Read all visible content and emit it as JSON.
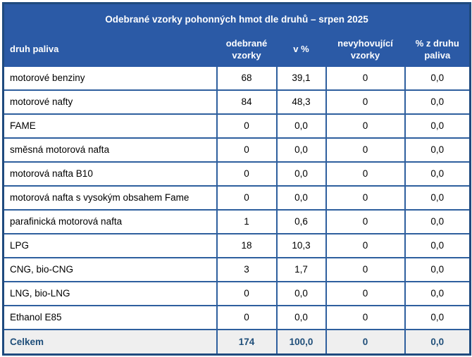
{
  "table": {
    "title": "Odebrané vzorky pohonných hmot dle druhů – srpen 2025",
    "columns": [
      "druh paliva",
      "odebrané vzorky",
      "v %",
      "nevyhovující vzorky",
      "% z druhu paliva"
    ],
    "rows": [
      [
        "motorové benziny",
        "68",
        "39,1",
        "0",
        "0,0"
      ],
      [
        "motorové nafty",
        "84",
        "48,3",
        "0",
        "0,0"
      ],
      [
        "FAME",
        "0",
        "0,0",
        "0",
        "0,0"
      ],
      [
        "směsná motorová nafta",
        "0",
        "0,0",
        "0",
        "0,0"
      ],
      [
        "motorová nafta B10",
        "0",
        "0,0",
        "0",
        "0,0"
      ],
      [
        "motorová nafta s vysokým obsahem Fame",
        "0",
        "0,0",
        "0",
        "0,0"
      ],
      [
        "parafinická motorová nafta",
        "1",
        "0,6",
        "0",
        "0,0"
      ],
      [
        "LPG",
        "18",
        "10,3",
        "0",
        "0,0"
      ],
      [
        "CNG, bio-CNG",
        "3",
        "1,7",
        "0",
        "0,0"
      ],
      [
        "LNG, bio-LNG",
        "0",
        "0,0",
        "0",
        "0,0"
      ],
      [
        "Ethanol E85",
        "0",
        "0,0",
        "0",
        "0,0"
      ]
    ],
    "total_row": [
      "Celkem",
      "174",
      "100,0",
      "0",
      "0,0"
    ],
    "colors": {
      "header_bg": "#2B5AA6",
      "header_text": "#FFFFFF",
      "grid_border": "#2E5F9E",
      "outer_border": "#1F4A7E",
      "total_bg": "#EFEFEF",
      "total_text": "#1F4E79",
      "body_text": "#000000",
      "body_bg": "#FFFFFF"
    }
  }
}
